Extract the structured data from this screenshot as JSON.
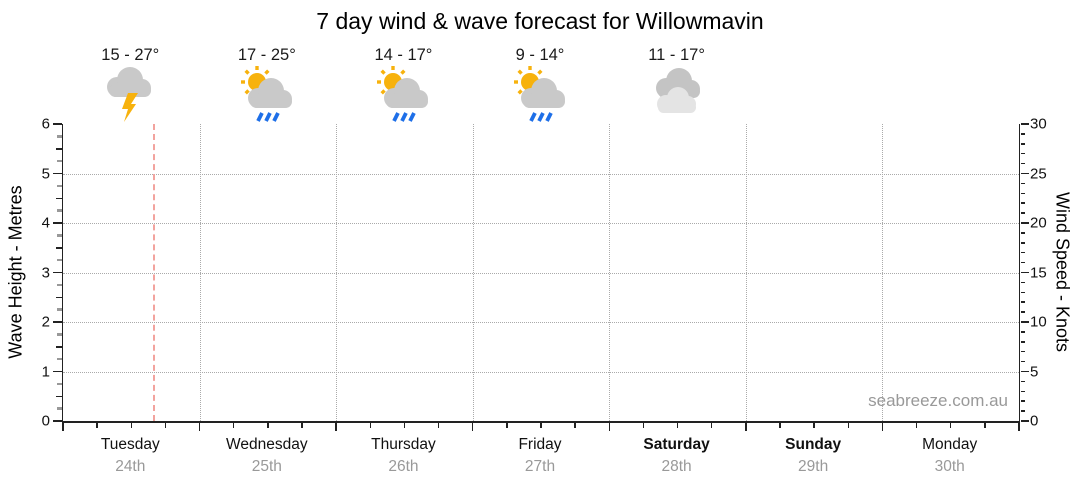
{
  "title": "7 day wind & wave forecast for Willowmavin",
  "watermark": "seabreeze.com.au",
  "forecast": {
    "entries": [
      {
        "day_index": 0,
        "temp": "15 - 27°",
        "icon": "thunderstorm"
      },
      {
        "day_index": 1,
        "temp": "17 - 25°",
        "icon": "partly-cloudy-rain"
      },
      {
        "day_index": 2,
        "temp": "14 - 17°",
        "icon": "partly-cloudy-rain"
      },
      {
        "day_index": 3,
        "temp": "9 - 14°",
        "icon": "partly-cloudy-rain"
      },
      {
        "day_index": 4,
        "temp": "11 - 17°",
        "icon": "cloudy"
      }
    ]
  },
  "chart_data": {
    "type": "line",
    "title": "7 day wind & wave forecast for Willowmavin",
    "series": [],
    "x_axis": {
      "days": [
        {
          "label": "Tuesday",
          "date": "24th",
          "bold": false
        },
        {
          "label": "Wednesday",
          "date": "25th",
          "bold": false
        },
        {
          "label": "Thursday",
          "date": "26th",
          "bold": false
        },
        {
          "label": "Friday",
          "date": "27th",
          "bold": false
        },
        {
          "label": "Saturday",
          "date": "28th",
          "bold": true
        },
        {
          "label": "Sunday",
          "date": "29th",
          "bold": true
        },
        {
          "label": "Monday",
          "date": "30th",
          "bold": false
        }
      ],
      "minor_ticks_per_day": 4,
      "grid": true
    },
    "y_left": {
      "label": "Wave Height - Metres",
      "min": 0,
      "max": 6,
      "major_step": 1,
      "minor_step": 0.25,
      "tick_labels": [
        0,
        1,
        2,
        3,
        4,
        5,
        6
      ],
      "gridlines": [
        1,
        2,
        3,
        4,
        5
      ]
    },
    "y_right": {
      "label": "Wind Speed - Knots",
      "min": 0,
      "max": 30,
      "major_step": 5,
      "minor_step": 1,
      "tick_labels": [
        0,
        5,
        10,
        15,
        20,
        25,
        30
      ]
    },
    "now_marker": {
      "day_index": 0,
      "fraction": 0.66
    }
  },
  "colors": {
    "sun": "#F7B20D",
    "lightning": "#F7B20D",
    "cloud": "#C9C9C9",
    "cloud_dark": "#C4C4C4",
    "cloud_light": "#E4E4E4",
    "rain": "#1E6FE8",
    "now_line": "#F2A39E",
    "grid": "#AAAAAA",
    "axis": "#222222",
    "muted_text": "#999999"
  }
}
